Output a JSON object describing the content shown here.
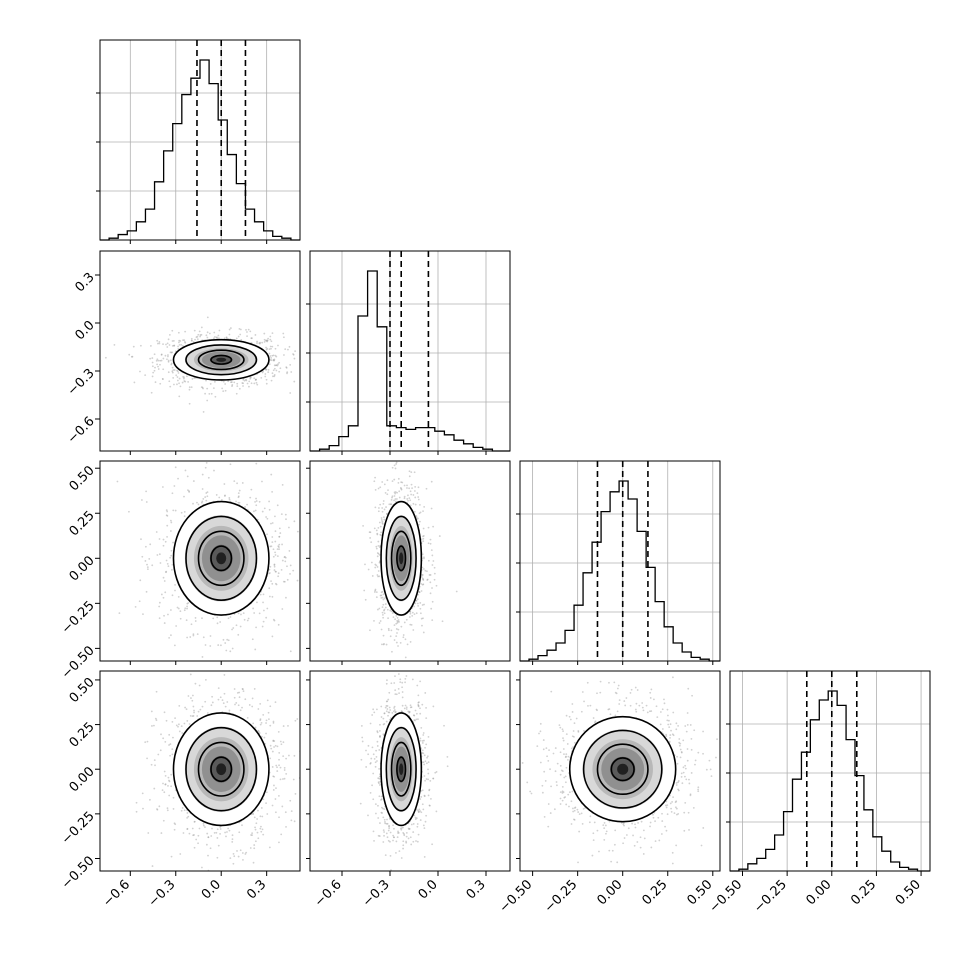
{
  "chart_data": {
    "type": "corner",
    "dimensions": 4,
    "axis_ticks": [
      {
        "values": [
          -0.6,
          -0.3,
          0.0,
          0.3
        ],
        "labels": [
          "−0.6",
          "−0.3",
          "0.0",
          "0.3"
        ]
      },
      {
        "values": [
          -0.6,
          -0.3,
          0.0,
          0.3
        ],
        "labels": [
          "−0.6",
          "−0.3",
          "0.0",
          "0.3"
        ]
      },
      {
        "values": [
          -0.5,
          -0.25,
          0.0,
          0.25,
          0.5
        ],
        "labels": [
          "−0.50",
          "−0.25",
          "0.00",
          "0.25",
          "0.50"
        ]
      },
      {
        "values": [
          -0.5,
          -0.25,
          0.0,
          0.25,
          0.5
        ],
        "labels": [
          "−0.50",
          "−0.25",
          "0.00",
          "0.25",
          "0.50"
        ]
      }
    ],
    "axis_ranges": [
      [
        -0.8,
        0.52
      ],
      [
        -0.8,
        0.45
      ],
      [
        -0.57,
        0.54
      ],
      [
        -0.57,
        0.55
      ]
    ],
    "marginals": [
      {
        "dim": 0,
        "bin_edges": [
          -0.8,
          -0.74,
          -0.68,
          -0.62,
          -0.56,
          -0.5,
          -0.44,
          -0.38,
          -0.32,
          -0.26,
          -0.2,
          -0.14,
          -0.08,
          -0.02,
          0.04,
          0.1,
          0.16,
          0.22,
          0.28,
          0.34,
          0.4,
          0.46,
          0.52
        ],
        "counts": [
          0,
          1,
          3,
          5,
          10,
          17,
          32,
          49,
          64,
          80,
          89,
          99,
          86,
          66,
          47,
          31,
          17,
          10,
          5,
          2,
          1,
          0
        ],
        "quantiles": [
          -0.16,
          0.0,
          0.16
        ]
      },
      {
        "dim": 1,
        "bin_edges": [
          -0.8,
          -0.74,
          -0.68,
          -0.62,
          -0.56,
          -0.5,
          -0.44,
          -0.38,
          -0.32,
          -0.26,
          -0.2,
          -0.14,
          -0.08,
          -0.02,
          0.04,
          0.1,
          0.16,
          0.22,
          0.28,
          0.34,
          0.4,
          0.45
        ],
        "counts": [
          0,
          1,
          3,
          8,
          14,
          75,
          100,
          69,
          14,
          13,
          12,
          13,
          13,
          11,
          9,
          6,
          4,
          2,
          1,
          0,
          0
        ],
        "quantiles": [
          -0.3,
          -0.23,
          -0.06
        ]
      },
      {
        "dim": 2,
        "bin_edges": [
          -0.57,
          -0.52,
          -0.47,
          -0.42,
          -0.37,
          -0.32,
          -0.27,
          -0.22,
          -0.17,
          -0.12,
          -0.07,
          -0.02,
          0.03,
          0.08,
          0.13,
          0.18,
          0.23,
          0.28,
          0.33,
          0.38,
          0.43,
          0.48,
          0.54
        ],
        "counts": [
          0,
          1,
          3,
          6,
          10,
          17,
          31,
          49,
          66,
          83,
          94,
          100,
          90,
          72,
          52,
          33,
          19,
          10,
          5,
          2,
          1,
          0
        ],
        "quantiles": [
          -0.14,
          0.0,
          0.14
        ]
      },
      {
        "dim": 3,
        "bin_edges": [
          -0.57,
          -0.52,
          -0.47,
          -0.42,
          -0.37,
          -0.32,
          -0.27,
          -0.22,
          -0.17,
          -0.12,
          -0.07,
          -0.02,
          0.03,
          0.08,
          0.13,
          0.18,
          0.23,
          0.28,
          0.33,
          0.38,
          0.43,
          0.48,
          0.55
        ],
        "counts": [
          0,
          1,
          4,
          7,
          12,
          20,
          33,
          51,
          66,
          84,
          95,
          100,
          92,
          73,
          53,
          34,
          19,
          11,
          5,
          2,
          1,
          0
        ],
        "quantiles": [
          -0.14,
          0.0,
          0.14
        ]
      }
    ],
    "joint_panels": [
      {
        "x_dim": 0,
        "y_dim": 1,
        "center": [
          0.0,
          -0.23
        ],
        "sigma": [
          0.15,
          0.06
        ]
      },
      {
        "x_dim": 0,
        "y_dim": 2,
        "center": [
          0.0,
          0.0
        ],
        "sigma": [
          0.15,
          0.15
        ]
      },
      {
        "x_dim": 1,
        "y_dim": 2,
        "center": [
          -0.23,
          0.0
        ],
        "sigma": [
          0.06,
          0.15
        ]
      },
      {
        "x_dim": 0,
        "y_dim": 3,
        "center": [
          0.0,
          0.0
        ],
        "sigma": [
          0.15,
          0.15
        ]
      },
      {
        "x_dim": 1,
        "y_dim": 3,
        "center": [
          -0.23,
          0.0
        ],
        "sigma": [
          0.06,
          0.15
        ]
      },
      {
        "x_dim": 2,
        "y_dim": 3,
        "center": [
          0.0,
          0.0
        ],
        "sigma": [
          0.14,
          0.14
        ]
      }
    ],
    "grid": true
  }
}
